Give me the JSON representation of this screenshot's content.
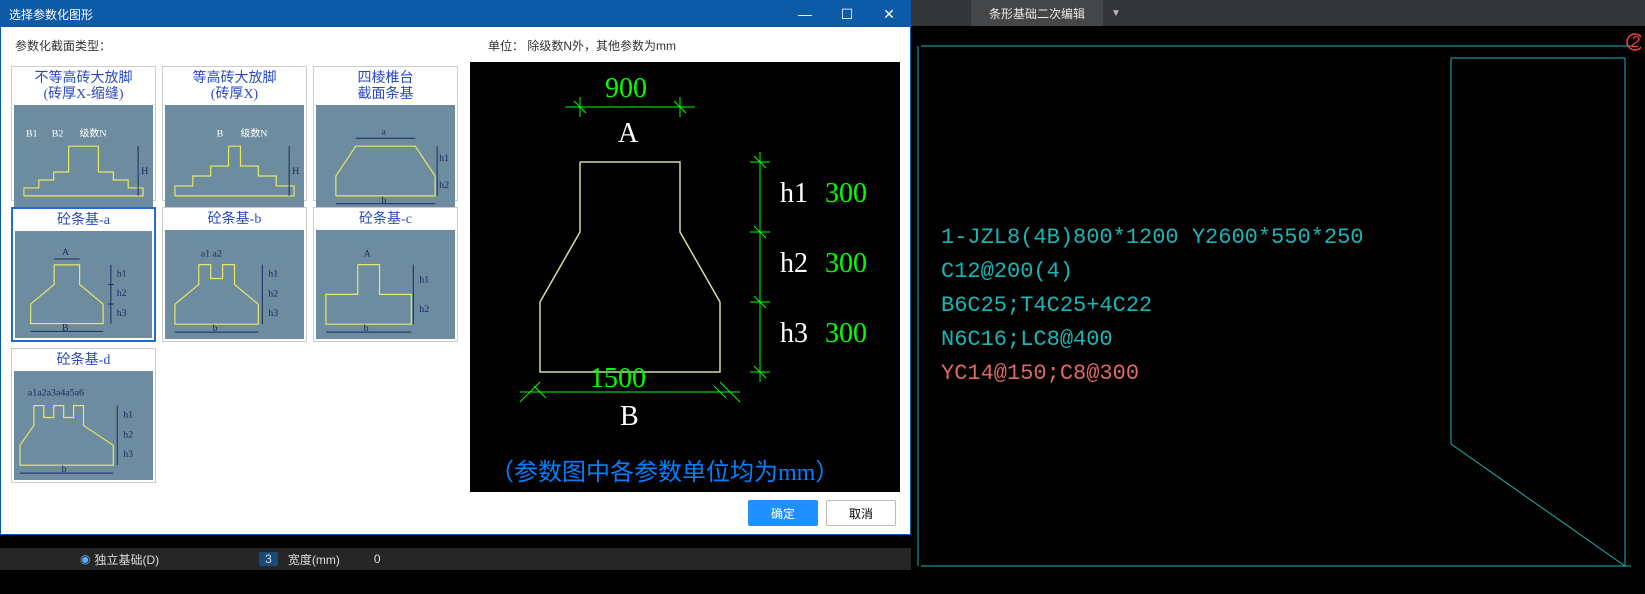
{
  "dialog": {
    "title": "选择参数化图形",
    "label_type": "参数化截面类型：",
    "label_unit": "单位：  除级数N外，其他参数为mm",
    "ok": "确定",
    "cancel": "取消",
    "minimize_glyph": "—",
    "maximize_glyph": "☐",
    "close_glyph": "✕"
  },
  "thumbnails": [
    {
      "caption": "不等高砖大放脚\n(砖厚X-缩缝)",
      "selected": false,
      "labels": [
        "B1",
        "B2",
        "级数N",
        "H"
      ]
    },
    {
      "caption": "等高砖大放脚\n(砖厚X)",
      "selected": false,
      "labels": [
        "B",
        "级数N",
        "H"
      ]
    },
    {
      "caption": "四棱椎台\n截面条基",
      "selected": false,
      "labels": [
        "a",
        "b",
        "h1",
        "h2"
      ]
    },
    {
      "caption": "砼条基-a",
      "selected": true,
      "labels": [
        "A",
        "B",
        "h1",
        "h2",
        "h3"
      ]
    },
    {
      "caption": "砼条基-b",
      "selected": false,
      "labels": [
        "a1",
        "a2",
        "b",
        "h1",
        "h2",
        "h3"
      ]
    },
    {
      "caption": "砼条基-c",
      "selected": false,
      "labels": [
        "A",
        "b",
        "h1",
        "h2"
      ]
    },
    {
      "caption": "砼条基-d",
      "selected": false,
      "labels": [
        "a1a2a3a4a5a6",
        "b",
        "h1",
        "h2",
        "h3"
      ]
    }
  ],
  "preview": {
    "A_value": "900",
    "A_label": "A",
    "B_value": "1500",
    "B_label": "B",
    "h_labels": [
      "h1",
      "h2",
      "h3"
    ],
    "h_values": [
      "300",
      "300",
      "300"
    ],
    "footer": "（参数图中各参数单位均为mm）",
    "geometry": {
      "top_width": 900,
      "bottom_width": 1500,
      "h1": 300,
      "h2": 300,
      "h3": 300
    },
    "colors": {
      "outline": "#d8d8a0",
      "dim_value": "#00ff00",
      "dim_label": "#ffffff",
      "footer": "#0080ff",
      "bg": "#000000"
    }
  },
  "cad": {
    "tab": "条形基础二次编辑",
    "text_lines": [
      {
        "text": "1-JZL8(4B)800*1200 Y2600*550*250",
        "color": "teal"
      },
      {
        "text": "C12@200(4)",
        "color": "teal"
      },
      {
        "text": "B6C25;T4C25+4C22",
        "color": "teal"
      },
      {
        "text": "N6C16;LC8@400",
        "color": "teal"
      },
      {
        "text": "YC14@150;C8@300",
        "color": "red"
      }
    ],
    "marker": "2",
    "wire_color": "#1bb5b5"
  },
  "status": {
    "item1": "独立基础(D)",
    "item2_num": "3",
    "item2_label": "宽度(mm)",
    "item2_val": "0"
  }
}
